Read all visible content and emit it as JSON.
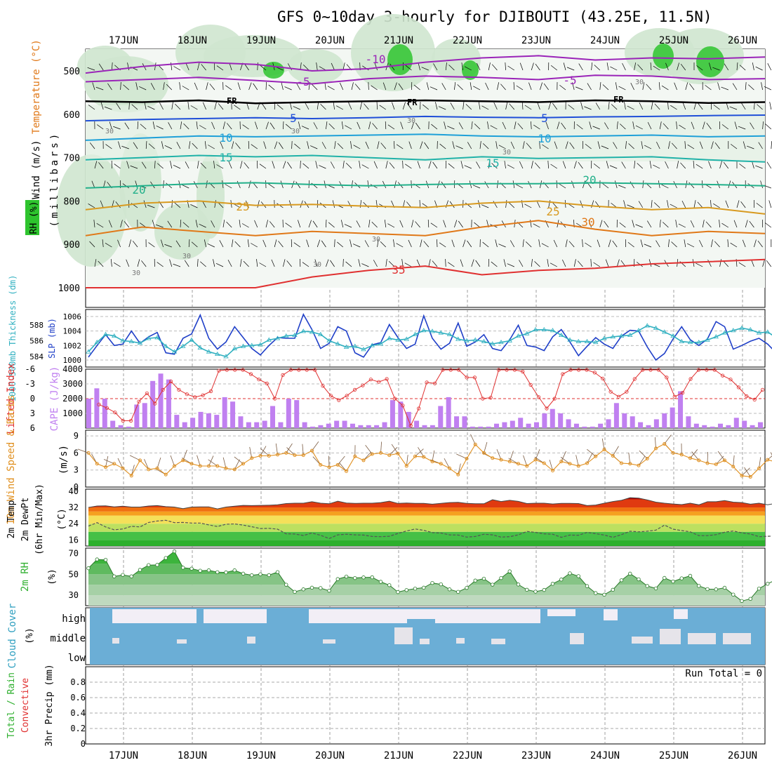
{
  "title": "GFS 0~10day 3-hourly for DJIBOUTI (43.25E, 11.5N)",
  "days": [
    "17JUN",
    "18JUN",
    "19JUN",
    "20JUN",
    "21JUN",
    "22JUN",
    "23JUN",
    "24JUN",
    "25JUN",
    "26JUN"
  ],
  "colors": {
    "rh_green": "#3cb43c",
    "wind_barb": "#000000",
    "cape_bar": "#c080f0",
    "lifted_index": "#e03030",
    "slp": "#1f3fc8",
    "thickness": "#30b0c0",
    "wind10m": "#e09020",
    "cloud": "#6baed6",
    "precip_grid": "#999999"
  },
  "chart_data": [
    {
      "type": "contour",
      "panel": "upper-air",
      "ylabel_parts": [
        "Wind (m/s)",
        "Temperature (°C)",
        "RH (%)"
      ],
      "ylabel2": "(millibars)",
      "y_ticks": [
        "500",
        "600",
        "700",
        "800",
        "900",
        "1000"
      ],
      "freezing_label": "FR",
      "isotherm_labels": [
        "-10",
        "-5",
        "-5",
        "5",
        "5",
        "10",
        "10",
        "15",
        "15",
        "20",
        "20",
        "25",
        "25",
        "30",
        "35"
      ],
      "rh_labels": [
        "30",
        "30",
        "30",
        "30",
        "30",
        "30",
        "30",
        "30",
        "30"
      ],
      "isotherms": [
        {
          "t": -10,
          "p": [
            505,
            490,
            480,
            485,
            500,
            495,
            480,
            470,
            465,
            475,
            470,
            472,
            468
          ]
        },
        {
          "t": -5,
          "p": [
            525,
            520,
            515,
            522,
            530,
            518,
            512,
            515,
            520,
            510,
            512,
            520,
            518
          ]
        },
        {
          "t": 0,
          "p": [
            570,
            572,
            568,
            575,
            572,
            570,
            568,
            570,
            572,
            568,
            570,
            574,
            572
          ]
        },
        {
          "t": 5,
          "p": [
            615,
            612,
            610,
            608,
            610,
            608,
            605,
            607,
            608,
            606,
            605,
            603,
            602
          ]
        },
        {
          "t": 10,
          "p": [
            660,
            655,
            650,
            652,
            650,
            648,
            646,
            650,
            652,
            650,
            648,
            652,
            650
          ]
        },
        {
          "t": 15,
          "p": [
            705,
            700,
            695,
            698,
            695,
            700,
            705,
            698,
            702,
            700,
            698,
            705,
            710
          ]
        },
        {
          "t": 20,
          "p": [
            770,
            765,
            760,
            758,
            762,
            765,
            762,
            760,
            760,
            758,
            760,
            762,
            765
          ]
        },
        {
          "t": 25,
          "p": [
            820,
            805,
            800,
            810,
            808,
            812,
            815,
            805,
            800,
            812,
            820,
            815,
            830
          ]
        },
        {
          "t": 30,
          "p": [
            880,
            860,
            870,
            880,
            870,
            875,
            880,
            860,
            845,
            865,
            880,
            870,
            875
          ]
        },
        {
          "t": 35,
          "p": [
            1000,
            1000,
            1000,
            1000,
            975,
            960,
            950,
            970,
            960,
            955,
            945,
            940,
            935
          ]
        }
      ]
    },
    {
      "type": "line",
      "panel": "thickness-slp",
      "ylabel_left": "1000-500mb Thickness (dm)",
      "ylabel_right": "SLP (mb)",
      "left_ticks": [
        "584",
        "586",
        "588"
      ],
      "right_ticks": [
        "1000",
        "1002",
        "1004",
        "1006"
      ],
      "series": [
        {
          "name": "SLP (mb)",
          "axis": "right",
          "values": [
            1000.4,
            1002.0,
            1003.5,
            1002.0,
            1002.2,
            1004.0,
            1002.3,
            1003.2,
            1003.8,
            1001.0,
            1000.8,
            1003.0,
            1003.6,
            1006.2,
            1003.0,
            1001.5,
            1002.5,
            1004.6,
            1003.1,
            1001.6,
            1000.7,
            1002.0,
            1003.1,
            1003.0,
            1003.0,
            1006.3,
            1004.2,
            1001.6,
            1002.3,
            1004.6,
            1004.0,
            1001.0,
            1000.4,
            1002.1,
            1002.4,
            1004.9,
            1003.1,
            1001.6,
            1002.2,
            1006.1,
            1003.0,
            1001.5,
            1002.3,
            1005.1,
            1001.9,
            1002.5,
            1003.5,
            1001.6,
            1001.3,
            1002.8,
            1004.8,
            1002.0,
            1001.8,
            1001.3,
            1003.2,
            1004.2,
            1002.5,
            1000.6,
            1001.9,
            1003.1,
            1002.2,
            1001.6,
            1003.3,
            1004.1,
            1004.0,
            1001.8,
            1000.0,
            1000.9,
            1002.9,
            1004.6,
            1002.8,
            1002.0,
            1002.9,
            1005.3,
            1004.6,
            1001.5,
            1002.0,
            1002.6,
            1003.0,
            1002.2,
            1001.0,
            1001.8,
            1002.9,
            1004.8,
            1003.1,
            1000.6,
            1001.9,
            1004.0
          ]
        },
        {
          "name": "1000-500mb Thickness (dm)",
          "axis": "left",
          "values": [
            584.6,
            585.8,
            586.8,
            586.6,
            586.0,
            585.9,
            585.7,
            586.3,
            586.4,
            585.3,
            584.6,
            585.3,
            586.1,
            585.1,
            584.6,
            584.3,
            584.0,
            585.0,
            585.3,
            585.4,
            585.5,
            586.1,
            586.3,
            586.6,
            586.7,
            587.2,
            587.1,
            586.8,
            586.0,
            585.6,
            585.2,
            585.3,
            584.9,
            585.4,
            585.6,
            586.3,
            586.1,
            586.2,
            586.8,
            587.3,
            587.2,
            587.0,
            586.8,
            586.2,
            586.0,
            586.1,
            585.9,
            585.6,
            585.8,
            586.0,
            586.6,
            586.9,
            587.4,
            587.4,
            587.3,
            586.7,
            586.1,
            585.9,
            585.9,
            585.8,
            586.3,
            586.5,
            586.6,
            586.7,
            587.3,
            587.9,
            587.6,
            587.1,
            586.6,
            585.9,
            585.8,
            585.8,
            586.1,
            586.5,
            587.0,
            587.3,
            587.6,
            587.4,
            587.0,
            587.1,
            586.4,
            586.1,
            586.6,
            587.3,
            587.7,
            588.1,
            587.8,
            587.1
          ]
        }
      ]
    },
    {
      "type": "bar+line",
      "panel": "cape-li",
      "ylabel_left": "Lifted Index",
      "ylabel_right": "CAPE (J/kg)",
      "left_ticks": [
        "-6",
        "-3",
        "0",
        "3",
        "6"
      ],
      "right_ticks": [
        "1000",
        "2000",
        "3000",
        "4000"
      ],
      "series": [
        {
          "name": "CAPE (J/kg)",
          "values": [
            2000,
            2700,
            2000,
            500,
            200,
            100,
            1600,
            1700,
            3200,
            3700,
            3300,
            900,
            400,
            700,
            1100,
            1000,
            900,
            2100,
            1800,
            800,
            400,
            400,
            500,
            1500,
            400,
            2000,
            1900,
            400,
            100,
            200,
            300,
            500,
            500,
            300,
            200,
            200,
            200,
            400,
            1900,
            1800,
            1100,
            500,
            200,
            200,
            1500,
            2100,
            800,
            800,
            100,
            100,
            100,
            300,
            400,
            500,
            700,
            300,
            400,
            1000,
            1300,
            1000,
            600,
            300,
            100,
            100,
            300,
            600,
            1700,
            1000,
            800,
            400,
            200,
            600,
            1000,
            1400,
            2500,
            800,
            300,
            200,
            100,
            300,
            200,
            700,
            500,
            200,
            400,
            300,
            200,
            200,
            100,
            1500,
            2200,
            1200,
            400,
            200,
            200
          ]
        },
        {
          "name": "Lifted Index",
          "values": [
            1.2,
            1.9,
            2.8,
            4.5,
            4.5,
            0.6,
            -1.1,
            1.0,
            -1.8,
            -3.5,
            -1.8,
            -0.9,
            -0.3,
            -0.7,
            -1.5,
            -5.7,
            -6.6,
            -6.5,
            -6.2,
            -5.0,
            -3.9,
            -3.1,
            0.0,
            -4.8,
            -6.0,
            -6.1,
            -6.0,
            -6.4,
            -2.6,
            -0.6,
            0.3,
            -0.6,
            -1.8,
            -2.7,
            -3.9,
            -3.4,
            -4.0,
            0.0,
            1.4,
            5.5,
            2.0,
            -3.3,
            -3.1,
            -6.2,
            -6.7,
            -5.9,
            -4.3,
            -4.3,
            0.0,
            -0.2,
            -6.3,
            -6.2,
            -6.0,
            -5.5,
            -2.8,
            -0.3,
            2.0,
            0.0,
            -5.0,
            -6.1,
            -6.4,
            -5.9,
            -5.3,
            -4.1,
            -1.4,
            -0.4,
            -1.4,
            -4.0,
            -6.2,
            -6.5,
            -6.3,
            -4.3,
            -0.4,
            -1.2,
            -4.0,
            -6.4,
            -6.5,
            -6.2,
            -4.7,
            -3.9,
            -2.3,
            -0.5,
            0.2,
            -1.8,
            -3.0,
            -3.4,
            -3.0,
            -3.0,
            -3.9,
            -4.0
          ]
        }
      ]
    },
    {
      "type": "line",
      "panel": "wind10m",
      "ylabel_left": "10m Wind Speed & Barbs",
      "ylabel_right": "(m/s)",
      "y_ticks": [
        "0",
        "3",
        "6",
        "9"
      ],
      "series": [
        {
          "name": "10m Wind Speed",
          "values": [
            6.0,
            4.1,
            3.5,
            4.1,
            3.3,
            2.0,
            4.7,
            3.1,
            3.3,
            2.2,
            3.7,
            4.7,
            4.1,
            3.7,
            3.7,
            3.7,
            3.3,
            3.1,
            4.1,
            5.1,
            5.5,
            5.5,
            5.7,
            6.0,
            5.6,
            5.6,
            6.4,
            3.9,
            3.5,
            3.9,
            2.8,
            5.4,
            4.7,
            5.8,
            6.0,
            5.6,
            5.9,
            3.7,
            5.4,
            5.3,
            4.5,
            4.1,
            3.3,
            2.2,
            5.0,
            7.5,
            6.0,
            5.1,
            4.8,
            4.5,
            4.1,
            3.7,
            4.8,
            4.2,
            2.9,
            4.5,
            4.1,
            3.7,
            4.2,
            5.4,
            6.6,
            5.5,
            4.2,
            4.1,
            3.8,
            5.0,
            6.8,
            7.6,
            6.0,
            5.7,
            5.1,
            4.7,
            4.2,
            4.0,
            4.7,
            3.6,
            2.0,
            1.8,
            3.3,
            4.8,
            4.4,
            5.2,
            5.8,
            6.7,
            5.7,
            5.5,
            5.4
          ]
        }
      ]
    },
    {
      "type": "area",
      "panel": "temp",
      "ylabel_parts": [
        "2m Temp",
        "2m DewPt",
        "(6hr Min/Max)"
      ],
      "ylabel_right": "(°C)",
      "y_ticks": [
        "16",
        "24",
        "32",
        "40"
      ],
      "series": [
        {
          "name": "2m Temp",
          "values": [
            32.0,
            32.7,
            32.8,
            32.3,
            32.6,
            32.2,
            32.2,
            32.7,
            32.9,
            32.4,
            32.2,
            31.4,
            32.2,
            32.3,
            32.3,
            31.3,
            32.2,
            32.6,
            33.0,
            32.9,
            33.0,
            33.1,
            33.3,
            33.9,
            34.1,
            34.1,
            34.8,
            34.1,
            33.8,
            35.1,
            34.2,
            34.0,
            34.1,
            34.1,
            34.4,
            35.1,
            34.0,
            34.2,
            34.0,
            34.0,
            33.6,
            34.0,
            34.4,
            34.5,
            34.0,
            33.8,
            33.8,
            35.8,
            34.9,
            35.5,
            35.0,
            33.9,
            34.1,
            34.1,
            33.7,
            34.0,
            34.0,
            33.9,
            32.9,
            33.2,
            34.1,
            34.9,
            35.5,
            36.8,
            36.6,
            35.7,
            34.6,
            34.1,
            33.7,
            33.4,
            34.1,
            33.3,
            34.8,
            34.8,
            35.4,
            34.6,
            34.4,
            33.6,
            34.1,
            33.3,
            34.1,
            38.1,
            39.5,
            37.3,
            35.9,
            33.5,
            33.4,
            33.3,
            33.8,
            38.0
          ]
        },
        {
          "name": "2m DewPt",
          "values": [
            22.8,
            24.5,
            22.4,
            21.0,
            21.4,
            22.7,
            22.4,
            24.6,
            25.3,
            25.7,
            24.5,
            24.6,
            24.3,
            24.3,
            23.4,
            22.6,
            23.7,
            23.9,
            23.3,
            22.5,
            21.6,
            21.7,
            21.3,
            19.0,
            18.9,
            18.2,
            19.4,
            18.3,
            16.7,
            18.5,
            18.8,
            18.5,
            18.4,
            17.7,
            17.6,
            17.8,
            19.2,
            20.4,
            21.4,
            20.7,
            19.6,
            19.4,
            18.5,
            18.4,
            17.4,
            17.7,
            18.8,
            18.5,
            17.4,
            17.6,
            18.5,
            20.2,
            19.7,
            19.0,
            18.8,
            17.3,
            18.4,
            18.3,
            19.7,
            19.1,
            18.4,
            17.3,
            18.6,
            20.3,
            20.0,
            20.3,
            20.8,
            23.3,
            21.3,
            20.6,
            20.0,
            18.1,
            18.1,
            18.6,
            19.8,
            20.4,
            19.5,
            18.9,
            17.6,
            17.8,
            17.9,
            17.7,
            16.5,
            18.6,
            20.8,
            21.5,
            19.5,
            19.2,
            17.6,
            17.5
          ]
        }
      ]
    },
    {
      "type": "area",
      "panel": "rh2m",
      "ylabel_left": "2m RH",
      "ylabel_right": "(%)",
      "y_ticks": [
        "30",
        "50",
        "70"
      ],
      "series": [
        {
          "name": "2m RH",
          "values": [
            55.8,
            64.2,
            63.8,
            48.0,
            49.4,
            48.0,
            54.2,
            58.8,
            59.0,
            65.6,
            71.9,
            56.3,
            55.4,
            53.4,
            53.8,
            52.0,
            51.8,
            53.8,
            50.6,
            49.1,
            50.0,
            49.2,
            52.1,
            40.0,
            33.2,
            35.6,
            37.2,
            36.8,
            34.3,
            45.4,
            47.8,
            46.4,
            47.0,
            47.1,
            42.8,
            39.6,
            33.0,
            34.9,
            36.3,
            37.2,
            41.7,
            40.4,
            35.6,
            33.2,
            37.0,
            44.0,
            45.8,
            40.1,
            46.4,
            52.8,
            40.2,
            35.2,
            33.4,
            35.0,
            40.9,
            45.0,
            50.9,
            48.2,
            38.7,
            32.0,
            30.5,
            35.2,
            44.3,
            50.6,
            45.2,
            38.8,
            36.5,
            46.5,
            43.1,
            46.1,
            48.5,
            38.9,
            35.8,
            35.6,
            37.1,
            30.6,
            24.5,
            26.5,
            36.3,
            40.9,
            44.9,
            49.5,
            46.8,
            43.1,
            43.2,
            41.1,
            30.0
          ]
        }
      ]
    },
    {
      "type": "heatmap",
      "panel": "cloud",
      "ylabel_left": "Cloud Cover",
      "ylabel_right": "(%)",
      "levels": [
        "high",
        "middle",
        "low"
      ],
      "notes": "high/middle/low cloud fraction shown as filled blocks per 3-hour step"
    },
    {
      "type": "bar",
      "panel": "precip",
      "ylabel_parts": [
        "Total / Rain",
        "Convective"
      ],
      "ylabel_right": "3hr Precip (mm)",
      "y_ticks": [
        "0",
        "0.2",
        "0.4",
        "0.6",
        "0.8"
      ],
      "annotation": "Run Total = 0",
      "values": []
    }
  ]
}
